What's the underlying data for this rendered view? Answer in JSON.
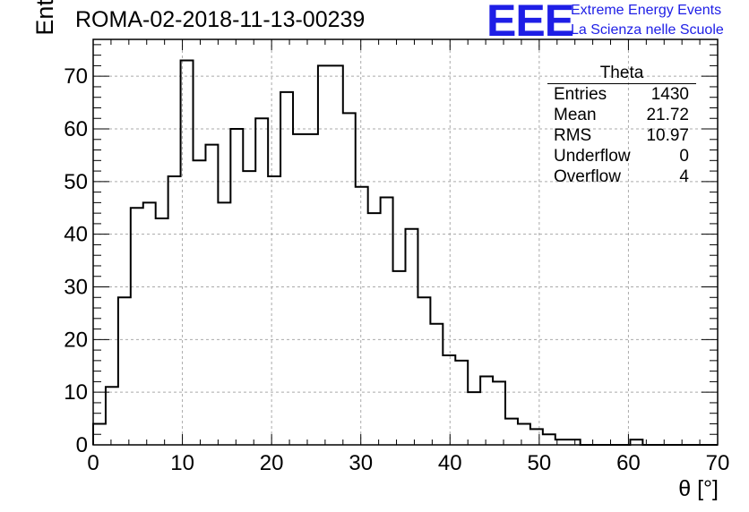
{
  "title": "ROMA-02-2018-11-13-00239",
  "logo": {
    "letters": "EEE",
    "line1": "Extreme Energy Events",
    "line2": "La Scienza nelle Scuole"
  },
  "stats": {
    "name": "Theta",
    "rows": [
      {
        "label": "Entries",
        "value": "1430"
      },
      {
        "label": "Mean",
        "value": "21.72"
      },
      {
        "label": "RMS",
        "value": "10.97"
      },
      {
        "label": "Underflow",
        "value": "0"
      },
      {
        "label": "Overflow",
        "value": "4"
      }
    ]
  },
  "chart_data": {
    "type": "histogram",
    "title": "ROMA-02-2018-11-13-00239",
    "xlabel": "θ [°]",
    "ylabel": "Entries/bin",
    "xlim": [
      0,
      70
    ],
    "ylim": [
      0,
      77
    ],
    "xticks": [
      0,
      10,
      20,
      30,
      40,
      50,
      60,
      70
    ],
    "yticks": [
      0,
      10,
      20,
      30,
      40,
      50,
      60,
      70
    ],
    "grid": true,
    "bin_width": 1.4,
    "bin_edges_start": 0,
    "values": [
      4,
      11,
      28,
      45,
      46,
      43,
      51,
      73,
      54,
      57,
      46,
      60,
      52,
      62,
      51,
      67,
      59,
      59,
      72,
      72,
      63,
      49,
      44,
      47,
      33,
      41,
      28,
      23,
      17,
      16,
      10,
      13,
      12,
      5,
      4,
      3,
      2,
      1,
      1,
      0,
      0,
      0,
      0,
      1,
      0,
      0,
      0,
      0,
      0,
      0
    ],
    "line_color": "#000000"
  }
}
